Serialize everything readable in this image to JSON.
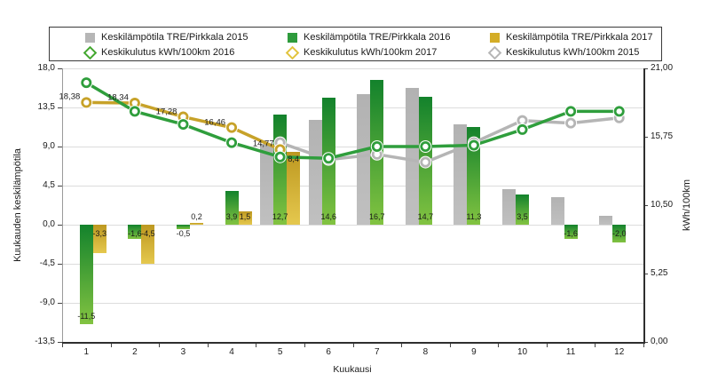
{
  "legend": {
    "items": [
      {
        "row": 0,
        "col": 0,
        "type": "square",
        "color": "#b6b6b6",
        "label": "Keskilämpötila TRE/Pirkkala 2015"
      },
      {
        "row": 0,
        "col": 1,
        "type": "square",
        "color": "#2e9b3c",
        "label": "Keskilämpötila TRE/Pirkkala 2016"
      },
      {
        "row": 0,
        "col": 2,
        "type": "square",
        "color": "#d4ad27",
        "label": "Keskilämpötila TRE/Pirkkala 2017"
      },
      {
        "row": 1,
        "col": 0,
        "type": "diamond",
        "color": "#43a72f",
        "label": "Keskikulutus kWh/100km 2016"
      },
      {
        "row": 1,
        "col": 1,
        "type": "diamond",
        "color": "#e2c43e",
        "label": "Keskikulutus kWh/100km 2017"
      },
      {
        "row": 1,
        "col": 2,
        "type": "diamond",
        "color": "#b6b6b6",
        "label": "Keskikulutus kWh/100km 2015"
      }
    ]
  },
  "chart_data": {
    "type": "combo: grouped bars (monthly mean temperature, left axis) + lines with circle markers (mean consumption kWh/100km, right axis)",
    "categories": [
      "1",
      "2",
      "3",
      "4",
      "5",
      "6",
      "7",
      "8",
      "9",
      "10",
      "11",
      "12"
    ],
    "xlabel": "Kuukausi",
    "left_axis": {
      "label": "Kuukauden keskilämpötila",
      "min": -13.5,
      "max": 18,
      "ticks": [
        {
          "v": 18,
          "t": "18,0"
        },
        {
          "v": 13.5,
          "t": "13,5"
        },
        {
          "v": 9,
          "t": "9,0"
        },
        {
          "v": 4.5,
          "t": "4,5"
        },
        {
          "v": 0,
          "t": "0,0"
        },
        {
          "v": -4.5,
          "t": "-4,5"
        },
        {
          "v": -9,
          "t": "-9,0"
        },
        {
          "v": -13.5,
          "t": "-13,5"
        }
      ]
    },
    "right_axis": {
      "label": "kWh/100km",
      "min": 0,
      "max": 21,
      "ticks": [
        {
          "v": 21,
          "t": "21,00"
        },
        {
          "v": 15.75,
          "t": "15,75"
        },
        {
          "v": 10.5,
          "t": "10,50"
        },
        {
          "v": 5.25,
          "t": "5,25"
        },
        {
          "v": 0,
          "t": "0,00"
        }
      ]
    },
    "bar_series": [
      {
        "name": "Keskilämpötila TRE/Pirkkala 2015",
        "axis": "left",
        "color_top": "#b2b2b2",
        "color_bottom": "#c0c0c0",
        "values": [
          null,
          null,
          null,
          null,
          9.3,
          12.1,
          15.0,
          15.8,
          11.6,
          4.1,
          3.2,
          1.0
        ],
        "labels": [
          null,
          null,
          null,
          null,
          null,
          null,
          null,
          null,
          null,
          null,
          null,
          null
        ]
      },
      {
        "name": "Keskilämpötila TRE/Pirkkala 2016",
        "axis": "left",
        "color_top": "#13822c",
        "color_bottom": "#82c341",
        "values": [
          -11.5,
          -1.6,
          -0.5,
          3.9,
          12.7,
          14.6,
          16.7,
          14.7,
          11.3,
          3.5,
          -1.6,
          -2.0
        ],
        "labels": [
          "-11,5",
          "-1,6",
          "-0,5",
          "3,9",
          "12,7",
          "14,6",
          "16,7",
          "14,7",
          "11,3",
          "3,5",
          "-1,6",
          "-2,0"
        ]
      },
      {
        "name": "Keskilämpötila TRE/Pirkkala 2017",
        "axis": "left",
        "color_top": "#bd9820",
        "color_bottom": "#e5c84e",
        "values": [
          -3.3,
          -4.5,
          0.2,
          1.5,
          8.4,
          null,
          null,
          null,
          null,
          null,
          null,
          null
        ],
        "labels": [
          "-3,3",
          "-4,5",
          "0,2",
          "1,5",
          "8,4",
          null,
          null,
          null,
          null,
          null,
          null,
          null
        ]
      }
    ],
    "line_series": [
      {
        "name": "Keskikulutus kWh/100km 2015",
        "axis": "right",
        "color": "#b5b5b5",
        "values": [
          null,
          null,
          null,
          null,
          15.3,
          14.0,
          14.4,
          13.8,
          15.3,
          17.0,
          16.8,
          17.2
        ],
        "labels": [
          null,
          null,
          null,
          null,
          null,
          null,
          null,
          null,
          null,
          null,
          null,
          null
        ]
      },
      {
        "name": "Keskikulutus kWh/100km 2017",
        "axis": "right",
        "color": "#c7a229",
        "values": [
          18.38,
          18.34,
          17.28,
          16.46,
          14.77,
          null,
          null,
          null,
          null,
          null,
          null,
          null
        ],
        "labels": [
          "18,38",
          "18,34",
          "17,28",
          "16,46",
          "14,77",
          null,
          null,
          null,
          null,
          null,
          null,
          null
        ]
      },
      {
        "name": "Keskikulutus kWh/100km 2016",
        "axis": "right",
        "color": "#2f9e3c",
        "values": [
          19.9,
          17.7,
          16.7,
          15.3,
          14.2,
          14.1,
          15.0,
          15.0,
          15.1,
          16.3,
          17.7,
          17.7
        ],
        "labels": [
          null,
          null,
          null,
          null,
          null,
          null,
          null,
          null,
          null,
          null,
          null,
          null
        ]
      }
    ],
    "legend_position": "top",
    "grid": "horizontal gridlines at every 4,5 °C step"
  }
}
